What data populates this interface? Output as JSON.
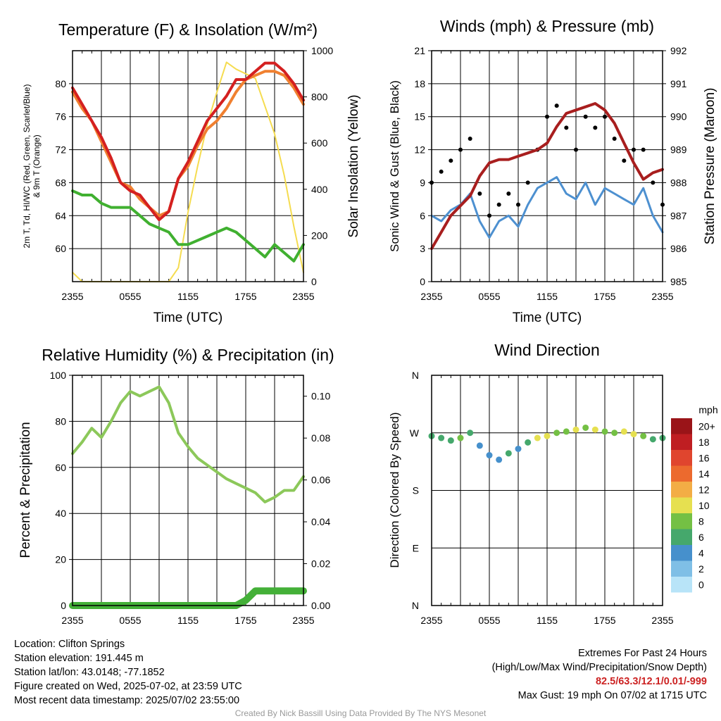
{
  "footer": {
    "location": "Location: Clifton Springs",
    "elevation": "Station elevation: 191.445 m",
    "latlon": "Station lat/lon: 43.0148; -77.1852",
    "created": "Figure created on Wed, 2025-07-02, at 23:59 UTC",
    "recent": "Most recent data timestamp: 2025/07/02 23:55:00",
    "extremes_title": "Extremes For Past 24 Hours",
    "extremes_legend": "(High/Low/Max Wind/Precipitation/Snow Depth)",
    "extremes_values": "82.5/63.3/12.1/0.01/-999",
    "max_gust": "Max Gust: 19 mph On 07/02 at 1715 UTC",
    "credit": "Created By Nick Bassill Using Data Provided By The NYS Mesonet"
  },
  "chart_data": [
    {
      "id": "temp",
      "type": "line",
      "title": "Temperature (F) & Insolation (W/m²)",
      "xlabel": "Time (UTC)",
      "ylabel": "2m T, Td, HI/WC (Red, Green, Scarlet/Blue) & 9m T (Orange)",
      "ylabel_right": "Solar Insolation (Yellow)",
      "x_ticks": [
        "2355",
        "0555",
        "1155",
        "1755",
        "2355"
      ],
      "ylim": [
        56,
        84
      ],
      "y_ticks": [
        60,
        64,
        68,
        72,
        76,
        80
      ],
      "ylim_right": [
        0,
        1000
      ],
      "y_ticks_right": [
        0,
        200,
        400,
        600,
        800,
        1000
      ],
      "x": [
        0,
        1,
        2,
        3,
        4,
        5,
        6,
        7,
        8,
        9,
        10,
        11,
        12,
        13,
        14,
        15,
        16,
        17,
        18,
        19,
        20,
        21,
        22,
        23,
        24
      ],
      "series": [
        {
          "name": "2m T",
          "color": "#d42020",
          "axis": "left",
          "values": [
            79.5,
            77.5,
            75.5,
            73.5,
            71.0,
            68.0,
            67.0,
            66.5,
            65.0,
            63.5,
            64.5,
            68.5,
            70.5,
            73.0,
            75.5,
            77.0,
            78.5,
            80.5,
            80.5,
            81.5,
            82.5,
            82.5,
            81.5,
            80.0,
            78.0
          ]
        },
        {
          "name": "9m T",
          "color": "#f08030",
          "axis": "left",
          "values": [
            79.0,
            77.0,
            75.5,
            73.0,
            70.5,
            68.0,
            67.5,
            66.0,
            65.0,
            64.0,
            64.5,
            68.5,
            70.0,
            72.5,
            74.5,
            75.5,
            77.0,
            79.0,
            80.5,
            81.0,
            81.5,
            81.5,
            81.0,
            79.5,
            77.5
          ]
        },
        {
          "name": "2m Td",
          "color": "#40b030",
          "axis": "left",
          "values": [
            67.0,
            66.5,
            66.5,
            65.5,
            65.0,
            65.0,
            65.0,
            64.0,
            63.0,
            62.5,
            62.0,
            60.5,
            60.5,
            61.0,
            61.5,
            62.0,
            62.5,
            62.0,
            61.0,
            60.0,
            59.0,
            60.5,
            59.5,
            58.5,
            60.5
          ]
        },
        {
          "name": "Solar Insolation",
          "color": "#f5dc50",
          "axis": "right",
          "values": [
            40,
            0,
            0,
            0,
            0,
            0,
            0,
            0,
            0,
            0,
            0,
            60,
            300,
            500,
            680,
            820,
            950,
            920,
            900,
            880,
            760,
            640,
            460,
            240,
            40
          ]
        }
      ]
    },
    {
      "id": "wind",
      "type": "line",
      "title": "Winds (mph) & Pressure (mb)",
      "xlabel": "Time (UTC)",
      "ylabel": "Sonic Wind & Gust (Blue, Black)",
      "ylabel_right": "Station Pressure (Maroon)",
      "x_ticks": [
        "2355",
        "0555",
        "1155",
        "1755",
        "2355"
      ],
      "ylim": [
        0,
        21
      ],
      "y_ticks": [
        0,
        3,
        6,
        9,
        12,
        15,
        18,
        21
      ],
      "ylim_right": [
        985,
        992
      ],
      "y_ticks_right": [
        985,
        986,
        987,
        988,
        989,
        990,
        991,
        992
      ],
      "x": [
        0,
        1,
        2,
        3,
        4,
        5,
        6,
        7,
        8,
        9,
        10,
        11,
        12,
        13,
        14,
        15,
        16,
        17,
        18,
        19,
        20,
        21,
        22,
        23,
        24
      ],
      "series": [
        {
          "name": "Wind",
          "color": "#4d90d0",
          "axis": "left",
          "values": [
            6.0,
            5.5,
            6.5,
            7.0,
            8.0,
            5.5,
            4.0,
            5.5,
            6.0,
            5.0,
            7.0,
            8.5,
            9.0,
            9.5,
            8.0,
            7.5,
            9.0,
            7.0,
            8.5,
            8.0,
            7.5,
            7.0,
            8.5,
            6.0,
            4.5
          ]
        },
        {
          "name": "Gust",
          "color": "#000000",
          "axis": "left",
          "values": [
            9,
            10,
            11,
            12,
            13,
            8,
            6,
            7,
            8,
            7,
            9,
            12,
            15,
            16,
            14,
            12,
            15,
            14,
            15,
            13,
            11,
            12,
            12,
            9,
            7
          ]
        },
        {
          "name": "Pressure",
          "color": "#a81e1e",
          "axis": "right",
          "values": [
            986.0,
            986.5,
            987.0,
            987.3,
            987.6,
            988.2,
            988.6,
            988.7,
            988.7,
            988.8,
            988.9,
            989.0,
            989.2,
            989.7,
            990.1,
            990.2,
            990.3,
            990.4,
            990.2,
            989.8,
            989.2,
            988.6,
            988.1,
            988.3,
            988.4
          ]
        }
      ]
    },
    {
      "id": "rh",
      "type": "line",
      "title": "Relative Humidity (%) & Precipitation (in)",
      "ylabel": "Percent & Precipitation",
      "x_ticks": [
        "2355",
        "0555",
        "1155",
        "1755",
        "2355"
      ],
      "ylim": [
        0,
        100
      ],
      "y_ticks": [
        0,
        20,
        40,
        60,
        80,
        100
      ],
      "ylim_right": [
        0,
        0.11
      ],
      "y_ticks_right": [
        "0.00",
        "0.02",
        "0.04",
        "0.06",
        "0.08",
        "0.10"
      ],
      "x": [
        0,
        1,
        2,
        3,
        4,
        5,
        6,
        7,
        8,
        9,
        10,
        11,
        12,
        13,
        14,
        15,
        16,
        17,
        18,
        19,
        20,
        21,
        22,
        23,
        24
      ],
      "series": [
        {
          "name": "RH",
          "color": "#8cc85a",
          "axis": "left",
          "values": [
            66,
            71,
            77,
            73,
            80,
            88,
            93,
            91,
            93,
            95,
            88,
            75,
            69,
            64,
            61,
            58,
            55,
            53,
            51,
            49,
            45,
            47,
            50,
            50,
            56
          ]
        },
        {
          "name": "Precip",
          "color": "#44b038",
          "axis": "right",
          "values": [
            0,
            0,
            0,
            0,
            0,
            0,
            0,
            0,
            0,
            0,
            0,
            0,
            0,
            0,
            0,
            0,
            0,
            0,
            0.0025,
            0.007,
            0.007,
            0.007,
            0.007,
            0.007,
            0.007
          ]
        }
      ]
    },
    {
      "id": "dir",
      "type": "scatter",
      "title": "Wind Direction",
      "ylabel": "Direction (Colored By Speed)",
      "x_ticks": [
        "2355",
        "0555",
        "1155",
        "1755",
        "2355"
      ],
      "y_ticks": [
        "N",
        "E",
        "S",
        "W",
        "N"
      ],
      "ylim": [
        0,
        360
      ],
      "colorbar_title": "mph",
      "colorbar_labels": [
        "0",
        "2",
        "4",
        "6",
        "8",
        "10",
        "12",
        "14",
        "16",
        "18",
        "20+"
      ],
      "colorbar_colors": [
        "#b8e4f8",
        "#7fbfe6",
        "#4690cc",
        "#45a86c",
        "#74c044",
        "#e6e050",
        "#f3ad45",
        "#ec6a2e",
        "#e0452e",
        "#bf1e22",
        "#9a1418"
      ],
      "x": [
        0,
        1,
        2,
        3,
        4,
        5,
        6,
        7,
        8,
        9,
        10,
        11,
        12,
        13,
        14,
        15,
        16,
        17,
        18,
        19,
        20,
        21,
        22,
        23,
        24
      ],
      "direction": [
        265,
        262,
        258,
        262,
        270,
        250,
        235,
        228,
        238,
        245,
        255,
        262,
        265,
        270,
        272,
        275,
        278,
        275,
        272,
        270,
        272,
        268,
        265,
        260,
        262
      ],
      "speed": [
        6,
        5,
        6,
        7,
        5,
        4,
        3,
        4,
        5,
        4,
        6,
        9,
        10,
        8,
        7,
        9,
        8,
        9,
        7,
        8,
        10,
        9,
        8,
        6,
        5
      ]
    }
  ]
}
